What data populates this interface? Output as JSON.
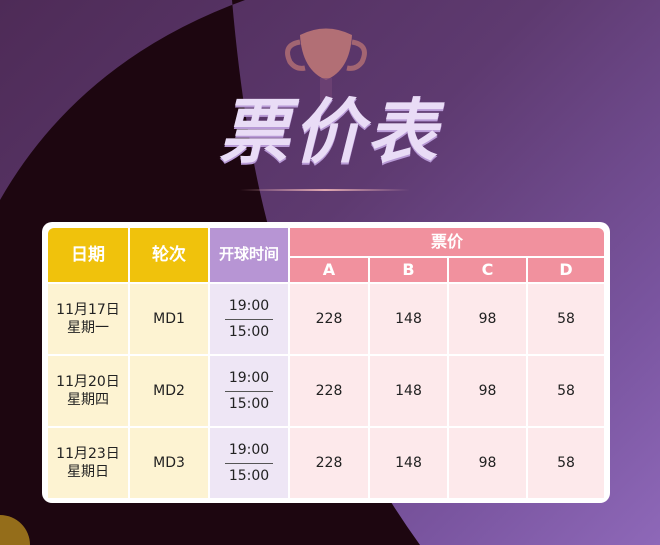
{
  "title": "票价表",
  "colors": {
    "date_header": "#f0c20c",
    "time_header": "#b795d4",
    "price_header": "#f1919e"
  },
  "headers": {
    "date": "日期",
    "round": "轮次",
    "time": "开球时间",
    "price": "票价",
    "tiers": [
      "A",
      "B",
      "C",
      "D"
    ]
  },
  "rows": [
    {
      "date": "11月17日",
      "weekday": "星期一",
      "round": "MD1",
      "time1": "19:00",
      "time2": "15:00",
      "prices": [
        "228",
        "148",
        "98",
        "58"
      ]
    },
    {
      "date": "11月20日",
      "weekday": "星期四",
      "round": "MD2",
      "time1": "19:00",
      "time2": "15:00",
      "prices": [
        "228",
        "148",
        "98",
        "58"
      ]
    },
    {
      "date": "11月23日",
      "weekday": "星期日",
      "round": "MD3",
      "time1": "19:00",
      "time2": "15:00",
      "prices": [
        "228",
        "148",
        "98",
        "58"
      ]
    }
  ]
}
